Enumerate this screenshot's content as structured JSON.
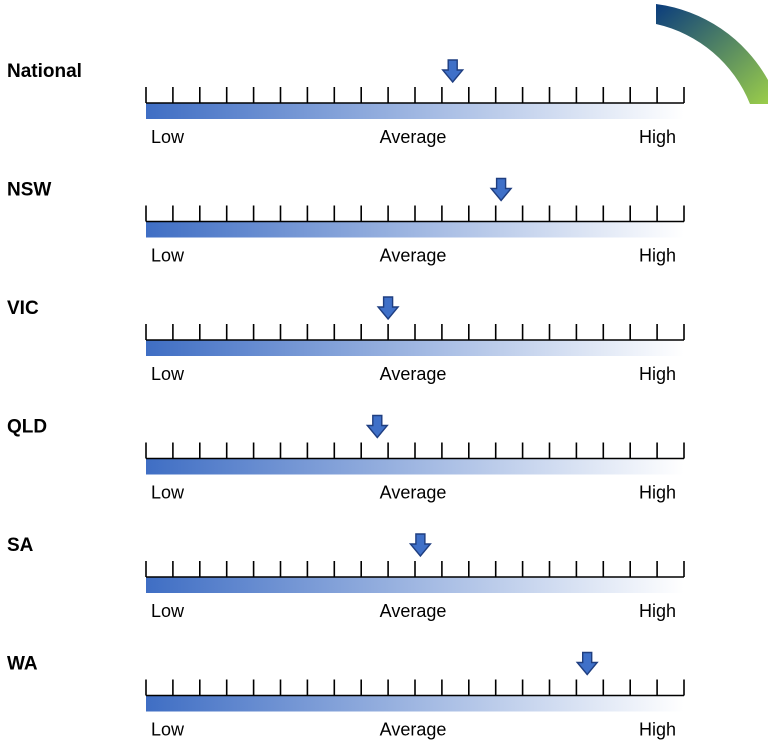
{
  "colors": {
    "bar_start": "#3f6ec4",
    "bar_end": "#ffffff",
    "marker_fill": "#3f70c8",
    "marker_stroke": "#1f3e80",
    "arc_start": "#0a3c7d",
    "arc_end": "#9acd4a"
  },
  "chart_data": {
    "type": "gauge",
    "scale": {
      "min": 0,
      "max": 100,
      "tick_count": 20,
      "labels": {
        "low": "Low",
        "average": "Average",
        "high": "High"
      }
    },
    "rows": [
      {
        "label": "National",
        "value": 57
      },
      {
        "label": "NSW",
        "value": 66
      },
      {
        "label": "VIC",
        "value": 45
      },
      {
        "label": "QLD",
        "value": 43
      },
      {
        "label": "SA",
        "value": 51
      },
      {
        "label": "WA",
        "value": 82
      }
    ]
  }
}
